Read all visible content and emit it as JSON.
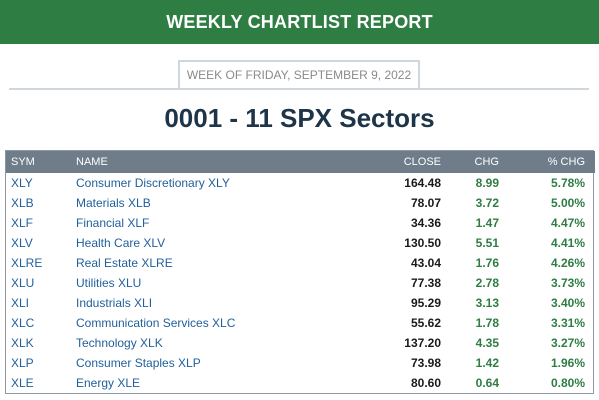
{
  "header": {
    "title": "WEEKLY CHARTLIST REPORT"
  },
  "week_label": "WEEK OF FRIDAY, SEPTEMBER 9, 2022",
  "page_title": "0001 - 11 SPX Sectors",
  "colors": {
    "header_bg": "#2e7d43",
    "table_header_bg": "#6f7d8b",
    "positive": "#2e7d43",
    "link": "#1f5f9c"
  },
  "table": {
    "columns": [
      "SYM",
      "NAME",
      "CLOSE",
      "CHG",
      "% CHG"
    ],
    "rows": [
      {
        "sym": "XLY",
        "name": "Consumer Discretionary XLY",
        "close": "164.48",
        "chg": "8.99",
        "pct": "5.78%"
      },
      {
        "sym": "XLB",
        "name": "Materials XLB",
        "close": "78.07",
        "chg": "3.72",
        "pct": "5.00%"
      },
      {
        "sym": "XLF",
        "name": "Financial XLF",
        "close": "34.36",
        "chg": "1.47",
        "pct": "4.47%"
      },
      {
        "sym": "XLV",
        "name": "Health Care XLV",
        "close": "130.50",
        "chg": "5.51",
        "pct": "4.41%"
      },
      {
        "sym": "XLRE",
        "name": "Real Estate XLRE",
        "close": "43.04",
        "chg": "1.76",
        "pct": "4.26%"
      },
      {
        "sym": "XLU",
        "name": "Utilities XLU",
        "close": "77.38",
        "chg": "2.78",
        "pct": "3.73%"
      },
      {
        "sym": "XLI",
        "name": "Industrials XLI",
        "close": "95.29",
        "chg": "3.13",
        "pct": "3.40%"
      },
      {
        "sym": "XLC",
        "name": "Communication Services XLC",
        "close": "55.62",
        "chg": "1.78",
        "pct": "3.31%"
      },
      {
        "sym": "XLK",
        "name": "Technology XLK",
        "close": "137.20",
        "chg": "4.35",
        "pct": "3.27%"
      },
      {
        "sym": "XLP",
        "name": "Consumer Staples XLP",
        "close": "73.98",
        "chg": "1.42",
        "pct": "1.96%"
      },
      {
        "sym": "XLE",
        "name": "Energy XLE",
        "close": "80.60",
        "chg": "0.64",
        "pct": "0.80%"
      }
    ]
  }
}
